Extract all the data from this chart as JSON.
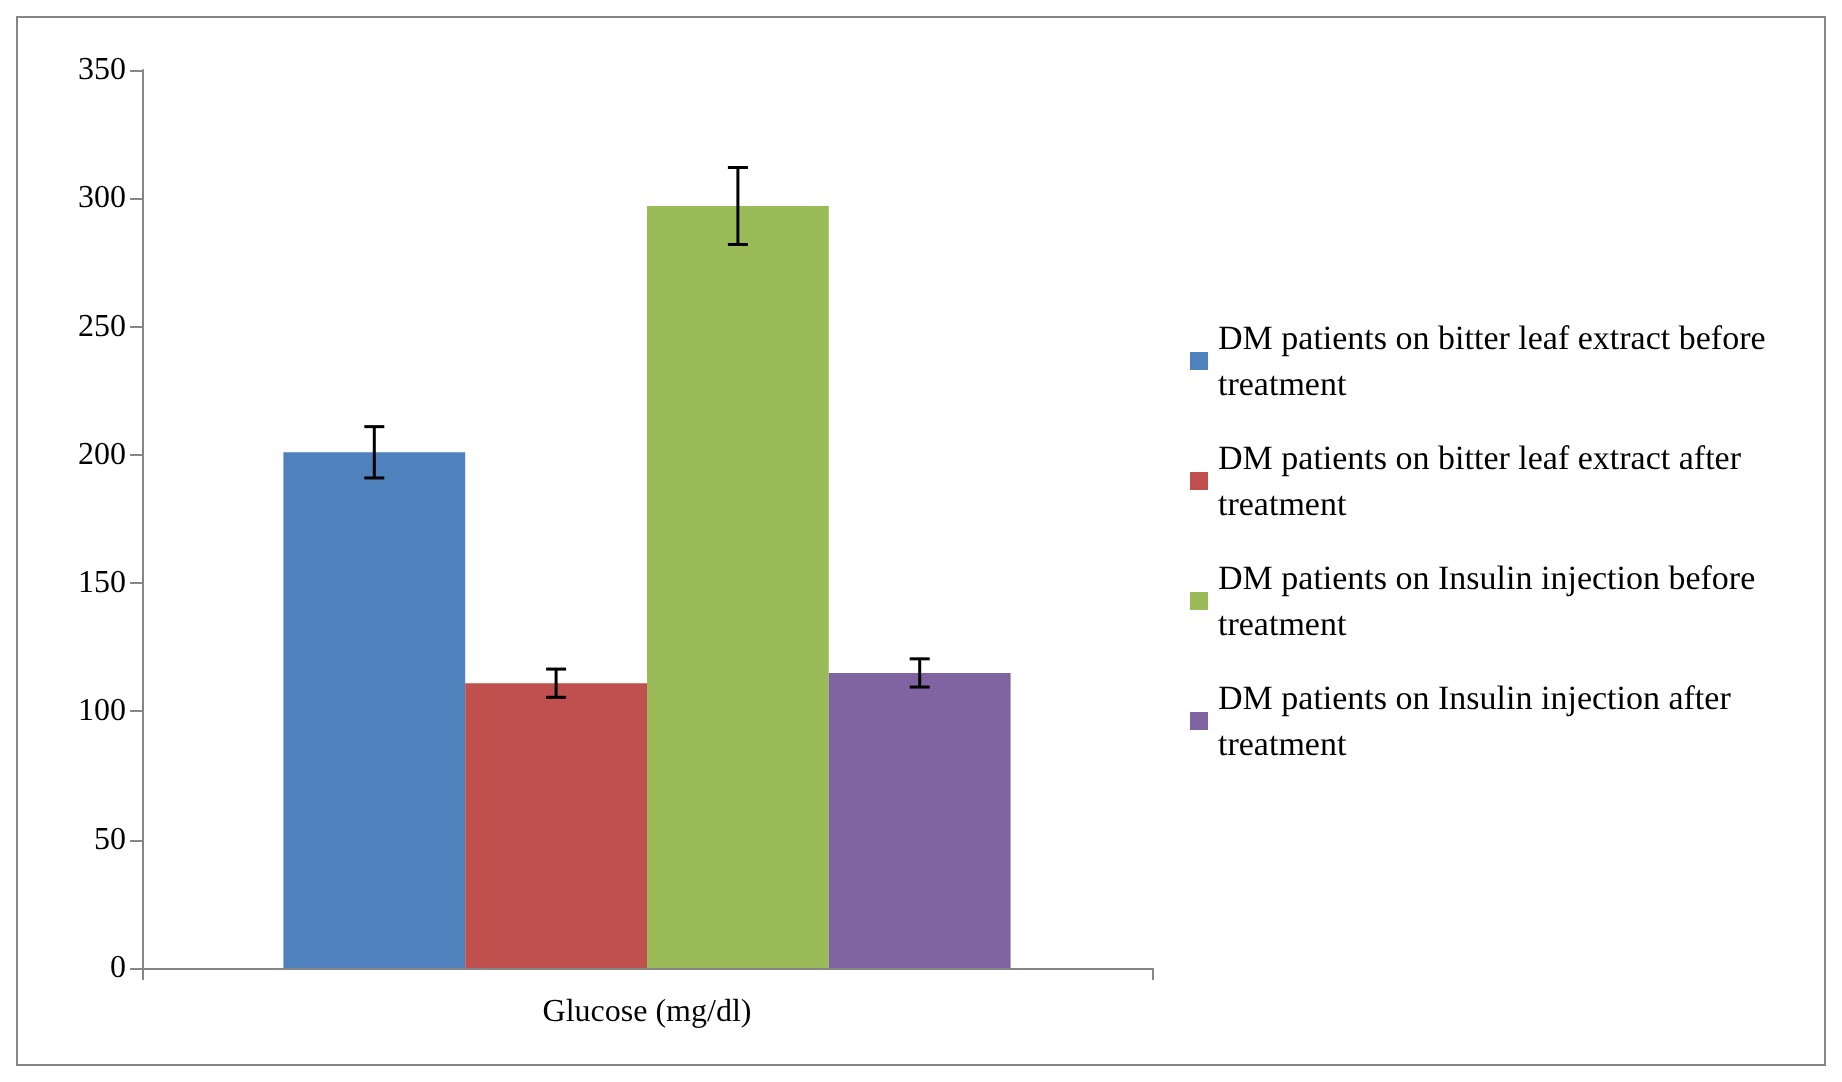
{
  "chart_data": {
    "type": "bar",
    "xlabel": null,
    "categories": [
      "Glucose (mg/dl)"
    ],
    "series": [
      {
        "name": "DM patients on bitter leaf extract before treatment",
        "color": "#4f81bd",
        "values": [
          201
        ],
        "errors": [
          10
        ]
      },
      {
        "name": "DM patients on bitter leaf extract after treatment",
        "color": "#c0504d",
        "values": [
          111
        ],
        "errors": [
          5.5
        ]
      },
      {
        "name": "DM patients on Insulin injection before treatment",
        "color": "#9bbb59",
        "values": [
          297
        ],
        "errors": [
          15
        ]
      },
      {
        "name": "DM patients on Insulin injection after treatment",
        "color": "#8064a2",
        "values": [
          115
        ],
        "errors": [
          5.5
        ]
      }
    ],
    "ylim": [
      0,
      350
    ],
    "yticks": [
      0,
      50,
      100,
      150,
      200,
      250,
      300,
      350
    ],
    "grid": false,
    "legend": "right"
  }
}
